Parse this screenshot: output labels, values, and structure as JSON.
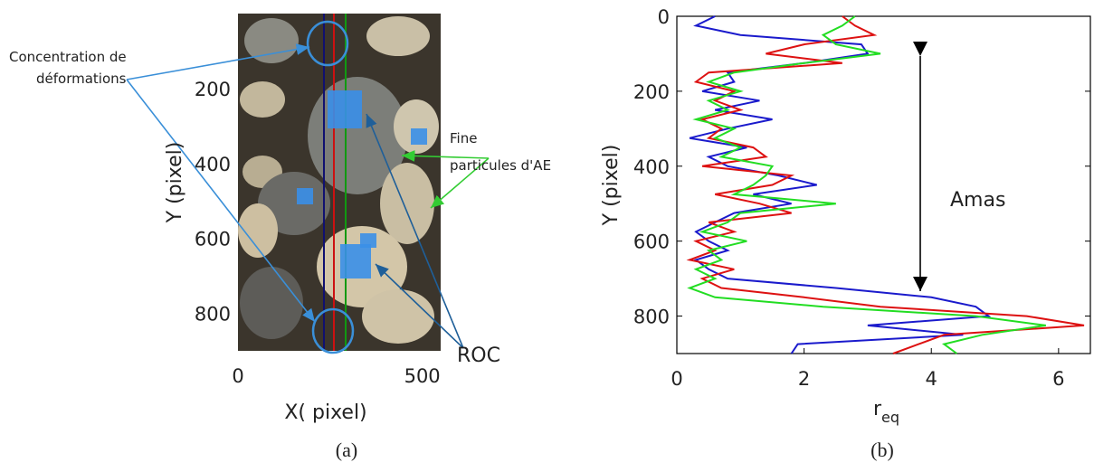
{
  "chart_data": [
    {
      "type": "image",
      "panel_label": "(a)",
      "xlabel": "X( pixel)",
      "ylabel": "Y (pixel)",
      "xlim": [
        0,
        550
      ],
      "xticks": [
        0,
        500
      ],
      "ylim": [
        0,
        900
      ],
      "yticks": [
        200,
        400,
        600,
        800
      ],
      "y_inverted": true,
      "annotations": [
        {
          "lines": [
            "Concentration de",
            "déformations"
          ]
        },
        {
          "lines": [
            "Fine",
            "particules d'AE"
          ]
        },
        {
          "lines": [
            "ROC"
          ]
        }
      ]
    },
    {
      "type": "line",
      "panel_label": "(b)",
      "xlabel": {
        "text": "r",
        "subscript": "eq"
      },
      "ylabel": "Y (pixel)",
      "xlim": [
        0,
        6.5
      ],
      "xticks": [
        0,
        2,
        4,
        6
      ],
      "ylim": [
        0,
        900
      ],
      "yticks": [
        0,
        200,
        400,
        600,
        800
      ],
      "y_inverted": true,
      "annotation": "Amas",
      "y": [
        0,
        25,
        50,
        75,
        100,
        125,
        150,
        175,
        200,
        225,
        250,
        275,
        300,
        325,
        350,
        375,
        400,
        425,
        450,
        475,
        500,
        525,
        550,
        575,
        600,
        625,
        650,
        675,
        700,
        725,
        750,
        775,
        800,
        825,
        850,
        875,
        900
      ],
      "series": [
        {
          "color": "#1a1acc",
          "values": [
            0.6,
            0.3,
            1.0,
            2.9,
            3.0,
            2.0,
            0.8,
            0.9,
            0.4,
            1.3,
            0.6,
            1.5,
            0.8,
            0.2,
            1.1,
            0.5,
            0.8,
            1.6,
            2.2,
            1.2,
            1.8,
            0.9,
            0.6,
            0.3,
            0.5,
            0.8,
            0.3,
            0.5,
            0.8,
            2.5,
            4.0,
            4.7,
            4.9,
            3.0,
            4.5,
            1.9,
            1.8
          ]
        },
        {
          "color": "#dd1111",
          "values": [
            2.6,
            2.8,
            3.1,
            2.0,
            1.4,
            2.6,
            0.5,
            0.3,
            0.9,
            0.6,
            1.0,
            0.4,
            0.7,
            0.5,
            1.2,
            1.4,
            0.4,
            1.8,
            1.5,
            0.6,
            1.3,
            1.8,
            0.5,
            0.9,
            0.3,
            0.6,
            0.2,
            0.9,
            0.4,
            0.7,
            2.0,
            3.2,
            5.5,
            6.4,
            4.2,
            3.8,
            3.4
          ]
        },
        {
          "color": "#22dd22",
          "values": [
            2.8,
            2.6,
            2.3,
            2.5,
            3.2,
            2.0,
            0.9,
            0.5,
            1.0,
            0.5,
            0.8,
            0.3,
            0.9,
            0.6,
            1.0,
            0.7,
            1.5,
            1.4,
            1.2,
            0.9,
            2.5,
            1.0,
            0.8,
            0.4,
            1.1,
            0.5,
            0.7,
            0.3,
            0.6,
            0.2,
            0.6,
            2.3,
            4.7,
            5.8,
            4.8,
            4.2,
            4.4
          ]
        }
      ]
    }
  ]
}
